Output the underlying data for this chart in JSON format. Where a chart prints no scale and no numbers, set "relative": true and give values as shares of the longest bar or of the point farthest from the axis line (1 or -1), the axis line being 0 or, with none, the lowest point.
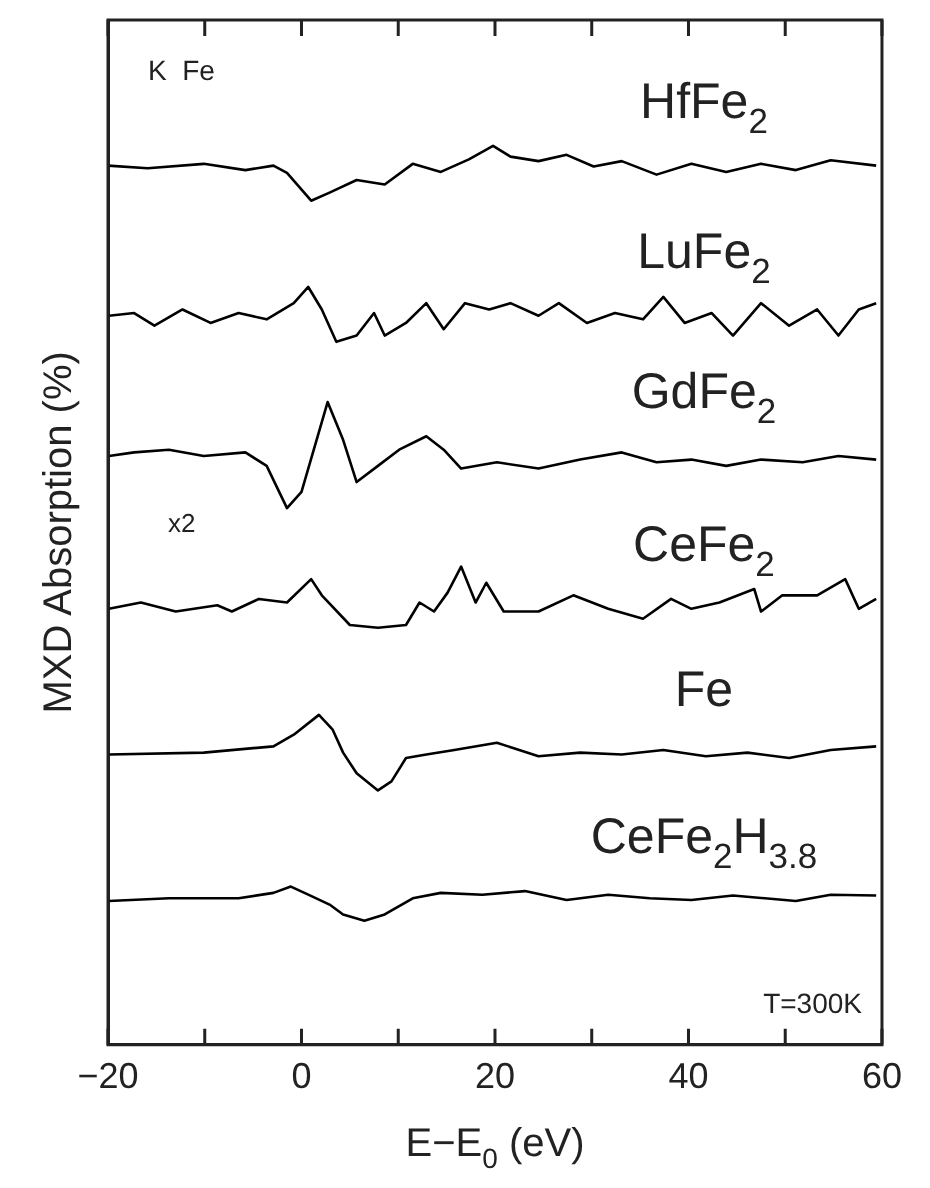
{
  "chart_data": {
    "type": "line",
    "relative": true,
    "xlabel": "E−E$_{0}$ (eV)",
    "ylabel": "MXD Absorption (%)",
    "xlim": [
      -20,
      60
    ],
    "xticks": [
      -20,
      {
        "value": -10,
        "label": null
      },
      0,
      {
        "value": 10,
        "label": null
      },
      20,
      {
        "value": 30,
        "label": null
      },
      40,
      {
        "value": 50,
        "label": null
      },
      60
    ],
    "grid": false,
    "legend": false,
    "marker": "none",
    "line_style": "solid",
    "annotations": [
      "K  Fe",
      "x2",
      "T=300K"
    ],
    "series": [
      {
        "name": "HfFe$_{2}$",
        "color": "#000000",
        "x": [
          -20,
          -15.9,
          -10.1,
          -5.8,
          -2.9,
          -1.5,
          1,
          2.9,
          5.7,
          8.6,
          11.5,
          14.4,
          17.3,
          19.8,
          21.6,
          24.5,
          27.4,
          30.2,
          33.1,
          36.7,
          40.3,
          43.9,
          47.5,
          51.1,
          54.7,
          59.4
        ],
        "values": [
          0.978,
          0.975,
          0.98,
          0.973,
          0.978,
          0.97,
          0.939,
          0.948,
          0.962,
          0.957,
          0.98,
          0.971,
          0.985,
          1.0,
          0.988,
          0.983,
          0.99,
          0.977,
          0.983,
          0.968,
          0.98,
          0.971,
          0.98,
          0.973,
          0.984,
          0.978
        ]
      },
      {
        "name": "LuFe$_{2}$",
        "color": "#000000",
        "x": [
          -19.9,
          -17.3,
          -15.2,
          -12.3,
          -9.4,
          -6.5,
          -3.6,
          -0.8,
          0.7,
          2.1,
          3.6,
          5.7,
          7.5,
          8.6,
          10.8,
          12.9,
          14.7,
          16.9,
          19.4,
          21.6,
          24.5,
          26.6,
          29.5,
          32.4,
          35.3,
          37.4,
          39.6,
          42.4,
          44.6,
          47.5,
          50.4,
          53.3,
          55.5,
          57.6,
          59.4
        ],
        "values": [
          0.811,
          0.814,
          0.8,
          0.818,
          0.803,
          0.814,
          0.807,
          0.825,
          0.843,
          0.818,
          0.782,
          0.789,
          0.814,
          0.789,
          0.803,
          0.825,
          0.796,
          0.825,
          0.818,
          0.825,
          0.811,
          0.825,
          0.803,
          0.814,
          0.807,
          0.832,
          0.803,
          0.814,
          0.789,
          0.825,
          0.8,
          0.818,
          0.789,
          0.818,
          0.825
        ]
      },
      {
        "name": "GdFe$_{2}$",
        "color": "#000000",
        "x": [
          -19.9,
          -17.3,
          -13.7,
          -10.1,
          -5.8,
          -3.6,
          -1.5,
          0,
          2.7,
          4.3,
          5.7,
          7.9,
          10.1,
          12.9,
          14.7,
          16.5,
          20.2,
          24.5,
          28.8,
          33.1,
          36.7,
          40.3,
          43.9,
          47.5,
          51.8,
          55.5,
          59.4
        ],
        "values": [
          0.655,
          0.659,
          0.662,
          0.655,
          0.659,
          0.644,
          0.597,
          0.615,
          0.715,
          0.673,
          0.626,
          0.644,
          0.662,
          0.677,
          0.662,
          0.641,
          0.648,
          0.641,
          0.651,
          0.659,
          0.648,
          0.651,
          0.644,
          0.651,
          0.648,
          0.655,
          0.651
        ]
      },
      {
        "name": "CeFe$_{2}$",
        "color": "#000000",
        "x": [
          -19.9,
          -16.6,
          -13,
          -8.7,
          -7.2,
          -4.4,
          -1.5,
          1,
          2.1,
          5,
          7.9,
          10.8,
          12.2,
          13.7,
          15.1,
          16.5,
          18,
          19.1,
          20.9,
          24.5,
          28.1,
          31.7,
          35.3,
          38.2,
          40.3,
          43.2,
          46.8,
          47.5,
          49.7,
          53.3,
          56.2,
          57.6,
          59.4
        ],
        "values": [
          0.485,
          0.492,
          0.482,
          0.489,
          0.482,
          0.496,
          0.492,
          0.518,
          0.5,
          0.467,
          0.464,
          0.467,
          0.492,
          0.482,
          0.503,
          0.532,
          0.492,
          0.514,
          0.482,
          0.482,
          0.5,
          0.485,
          0.474,
          0.496,
          0.485,
          0.492,
          0.507,
          0.482,
          0.5,
          0.5,
          0.518,
          0.485,
          0.496
        ]
      },
      {
        "name": "Fe",
        "color": "#000000",
        "x": [
          -19.9,
          -10.1,
          -2.9,
          -0.8,
          1.8,
          3.2,
          4.3,
          5.7,
          7.9,
          9.3,
          10.8,
          12.9,
          15.8,
          20.2,
          24.5,
          28.8,
          33.1,
          37.4,
          41.8,
          46.1,
          50.4,
          54.7,
          59.4
        ],
        "values": [
          0.323,
          0.325,
          0.332,
          0.345,
          0.367,
          0.351,
          0.325,
          0.302,
          0.283,
          0.293,
          0.319,
          0.323,
          0.328,
          0.336,
          0.321,
          0.325,
          0.323,
          0.328,
          0.321,
          0.325,
          0.319,
          0.328,
          0.332
        ]
      },
      {
        "name": "CeFe$_{2}$H$_{3.8}$",
        "color": "#000000",
        "x": [
          -19.9,
          -13.7,
          -6.5,
          -2.9,
          -1.1,
          0.7,
          2.9,
          4.3,
          6.5,
          8.6,
          11.5,
          14.4,
          18.7,
          23.1,
          27.4,
          31.7,
          36,
          40.3,
          44.6,
          51.1,
          54.7,
          59.4
        ],
        "values": [
          0.16,
          0.163,
          0.163,
          0.169,
          0.176,
          0.167,
          0.156,
          0.145,
          0.138,
          0.145,
          0.163,
          0.169,
          0.167,
          0.171,
          0.161,
          0.167,
          0.163,
          0.161,
          0.166,
          0.16,
          0.167,
          0.166
        ]
      }
    ]
  }
}
